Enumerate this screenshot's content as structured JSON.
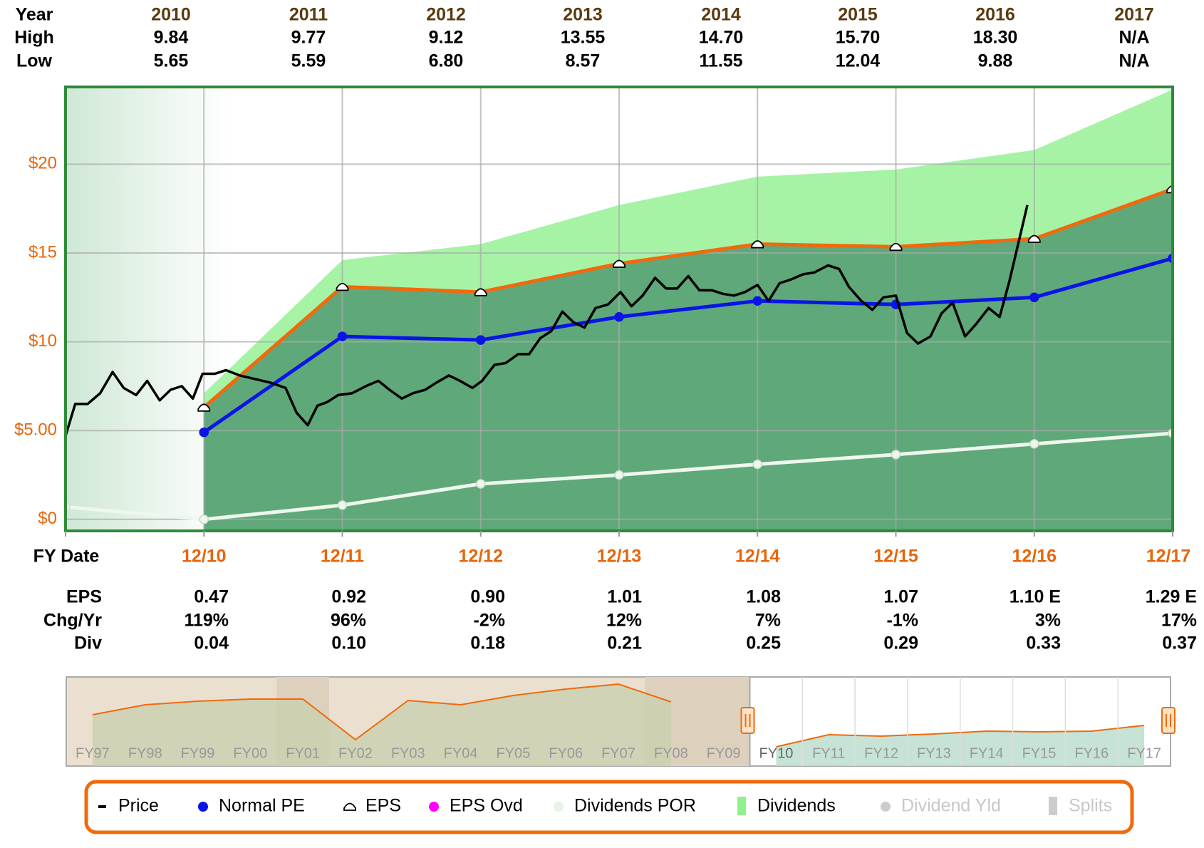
{
  "chart_data": {
    "type": "line",
    "header_table": {
      "row_labels": [
        "Year",
        "High",
        "Low"
      ],
      "columns": [
        {
          "year": "2010",
          "high": "9.84",
          "low": "5.65"
        },
        {
          "year": "2011",
          "high": "9.77",
          "low": "5.59"
        },
        {
          "year": "2012",
          "high": "9.12",
          "low": "6.80"
        },
        {
          "year": "2013",
          "high": "13.55",
          "low": "8.57"
        },
        {
          "year": "2014",
          "high": "14.70",
          "low": "11.55"
        },
        {
          "year": "2015",
          "high": "15.70",
          "low": "12.04"
        },
        {
          "year": "2016",
          "high": "18.30",
          "low": "9.88"
        },
        {
          "year": "2017",
          "high": "N/A",
          "low": "N/A"
        }
      ]
    },
    "x_label": "FY Date",
    "xlim": [
      2009,
      2017
    ],
    "xticks": [
      {
        "value": 2010,
        "label": "12/10"
      },
      {
        "value": 2011,
        "label": "12/11"
      },
      {
        "value": 2012,
        "label": "12/12"
      },
      {
        "value": 2013,
        "label": "12/13"
      },
      {
        "value": 2014,
        "label": "12/14"
      },
      {
        "value": 2015,
        "label": "12/15"
      },
      {
        "value": 2016,
        "label": "12/16"
      },
      {
        "value": 2017,
        "label": "12/17"
      }
    ],
    "ylim": [
      -0.65,
      24.35
    ],
    "yticks": [
      {
        "value": 0,
        "label": "$0"
      },
      {
        "value": 5,
        "label": "$5.00"
      },
      {
        "value": 10,
        "label": "$10"
      },
      {
        "value": 15,
        "label": "$15"
      },
      {
        "value": 20,
        "label": "$20"
      }
    ],
    "grid": true,
    "series": [
      {
        "name": "Price",
        "color": "#000000",
        "marker": "dash",
        "x": [
          2009.0,
          2009.07,
          2009.16,
          2009.25,
          2009.34,
          2009.42,
          2009.51,
          2009.59,
          2009.68,
          2009.76,
          2009.84,
          2009.92,
          2009.99,
          2010.08,
          2010.16,
          2010.26,
          2010.37,
          2010.48,
          2010.59,
          2010.67,
          2010.75,
          2010.82,
          2010.89,
          2010.97,
          2011.07,
          2011.17,
          2011.26,
          2011.34,
          2011.43,
          2011.51,
          2011.6,
          2011.68,
          2011.77,
          2011.85,
          2011.94,
          2012.01,
          2012.1,
          2012.18,
          2012.27,
          2012.35,
          2012.43,
          2012.51,
          2012.59,
          2012.67,
          2012.75,
          2012.83,
          2012.92,
          2013.01,
          2013.09,
          2013.17,
          2013.26,
          2013.34,
          2013.42,
          2013.5,
          2013.58,
          2013.67,
          2013.75,
          2013.83,
          2013.91,
          2014.0,
          2014.08,
          2014.16,
          2014.24,
          2014.33,
          2014.41,
          2014.51,
          2014.59,
          2014.66,
          2014.75,
          2014.83,
          2014.91,
          2015.0,
          2015.08,
          2015.16,
          2015.25,
          2015.33,
          2015.41,
          2015.5,
          2015.58,
          2015.67,
          2015.75,
          2015.82,
          2015.95
        ],
        "values": [
          4.7,
          6.5,
          6.5,
          7.1,
          8.3,
          7.4,
          7.0,
          7.8,
          6.7,
          7.3,
          7.5,
          6.8,
          8.2,
          8.2,
          8.4,
          8.1,
          7.9,
          7.7,
          7.4,
          6.0,
          5.3,
          6.4,
          6.6,
          7.0,
          7.1,
          7.5,
          7.8,
          7.3,
          6.8,
          7.1,
          7.3,
          7.7,
          8.1,
          7.8,
          7.4,
          7.8,
          8.7,
          8.8,
          9.3,
          9.3,
          10.2,
          10.6,
          11.7,
          11.1,
          10.8,
          11.9,
          12.1,
          12.8,
          12.0,
          12.6,
          13.6,
          13.0,
          13.0,
          13.7,
          12.9,
          12.9,
          12.7,
          12.6,
          12.8,
          13.2,
          12.3,
          13.3,
          13.5,
          13.8,
          13.9,
          14.3,
          14.1,
          13.1,
          12.3,
          11.8,
          12.5,
          12.6,
          10.5,
          9.9,
          10.3,
          11.6,
          12.2,
          10.3,
          11.0,
          11.9,
          11.4,
          13.4,
          17.7
        ]
      },
      {
        "name": "Normal PE",
        "color": "#0a14e6",
        "marker": "dot",
        "x": [
          2010,
          2011,
          2012,
          2013,
          2014,
          2015,
          2016,
          2017
        ],
        "values": [
          4.9,
          10.3,
          10.1,
          11.4,
          12.3,
          12.1,
          12.5,
          14.7
        ]
      },
      {
        "name": "EPS",
        "color": "#f06a0c",
        "marker": "hat",
        "area_fill": "#5fa87a",
        "x": [
          2010,
          2011,
          2012,
          2013,
          2014,
          2015,
          2016,
          2017
        ],
        "values": [
          6.3,
          13.1,
          12.8,
          14.4,
          15.5,
          15.35,
          15.8,
          18.6
        ]
      },
      {
        "name": "EPS Ovd",
        "color": "#ff00ff",
        "marker": "dot",
        "x": [],
        "values": []
      },
      {
        "name": "Dividends POR",
        "color": "#e6f4e6",
        "marker": "dot",
        "x": [
          2009,
          2010,
          2011,
          2012,
          2013,
          2014,
          2015,
          2016,
          2017
        ],
        "values": [
          0.7,
          0,
          0.8,
          2.0,
          2.5,
          3.1,
          3.65,
          4.25,
          4.85
        ]
      },
      {
        "name": "Dividends",
        "color": "#90f090",
        "marker": "bar",
        "style": "area",
        "x": [
          2010,
          2011,
          2012,
          2013,
          2014,
          2015,
          2016,
          2017
        ],
        "values": [
          7.1,
          14.6,
          15.5,
          17.7,
          19.3,
          19.7,
          20.8,
          24.2
        ]
      },
      {
        "name": "Dividend Yld",
        "color": "#cccccc",
        "marker": "dot",
        "enabled": false,
        "x": [],
        "values": []
      },
      {
        "name": "Splits",
        "color": "#cccccc",
        "marker": "bar",
        "enabled": false,
        "x": [],
        "values": []
      }
    ],
    "footer_table": {
      "row_labels": [
        "EPS",
        "Chg/Yr",
        "Div"
      ],
      "columns": [
        {
          "eps": "0.47",
          "chg": "119%",
          "div": "0.04"
        },
        {
          "eps": "0.92",
          "chg": "96%",
          "div": "0.10"
        },
        {
          "eps": "0.90",
          "chg": "-2%",
          "div": "0.18"
        },
        {
          "eps": "1.01",
          "chg": "12%",
          "div": "0.21"
        },
        {
          "eps": "1.08",
          "chg": "7%",
          "div": "0.25"
        },
        {
          "eps": "1.07",
          "chg": "-1%",
          "div": "0.29"
        },
        {
          "eps": "1.10 E",
          "chg": "3%",
          "div": "0.33"
        },
        {
          "eps": "1.29 E",
          "chg": "17%",
          "div": "0.37"
        }
      ]
    },
    "navigator": {
      "labels": [
        "FY97",
        "FY98",
        "FY99",
        "FY00",
        "FY01",
        "FY02",
        "FY03",
        "FY04",
        "FY05",
        "FY06",
        "FY07",
        "FY08",
        "FY09",
        "FY10",
        "FY11",
        "FY12",
        "FY13",
        "FY14",
        "FY15",
        "FY16",
        "FY17"
      ],
      "values": [
        60,
        74,
        79,
        82,
        82,
        25,
        80,
        74,
        87,
        96,
        103,
        78,
        null,
        15,
        32,
        30,
        33,
        37,
        36,
        37,
        45
      ],
      "selected_from": "FY10"
    }
  }
}
